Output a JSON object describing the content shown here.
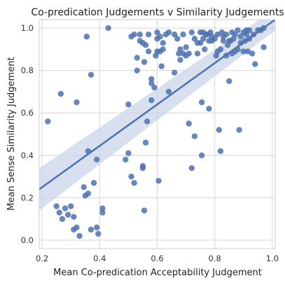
{
  "chart_data": {
    "type": "scatter",
    "title": "Co-predication Judgements v Similarity Judgements",
    "xlabel": "Mean Co-predication Acceptability Judgement",
    "ylabel": "Mean Sense Similarity Judgement",
    "xlim": [
      0.19,
      1.01
    ],
    "ylim": [
      -0.04,
      1.04
    ],
    "xticks": [
      0.2,
      0.4,
      0.6,
      0.8,
      1.0
    ],
    "xtick_labels": [
      "0.2",
      "0.4",
      "0.6",
      "0.8",
      "1.0"
    ],
    "yticks": [
      0.0,
      0.2,
      0.4,
      0.6,
      0.8,
      1.0
    ],
    "ytick_labels": [
      "0.0",
      "0.2",
      "0.4",
      "0.6",
      "0.8",
      "1.0"
    ],
    "grid": true,
    "colors": {
      "points": "#4c72b0",
      "line": "#4c72b0",
      "band": "#c7d3e8"
    },
    "regression": {
      "x": [
        0.19,
        1.01
      ],
      "y": [
        0.24,
        1.04
      ],
      "ci_lower": [
        0.14,
        0.99
      ],
      "ci_upper": [
        0.34,
        1.09
      ]
    },
    "points": [
      [
        0.22,
        0.56
      ],
      [
        0.25,
        0.16
      ],
      [
        0.26,
        0.13
      ],
      [
        0.265,
        0.69
      ],
      [
        0.27,
        0.1
      ],
      [
        0.28,
        0.15
      ],
      [
        0.29,
        0.12
      ],
      [
        0.3,
        0.16
      ],
      [
        0.31,
        0.05
      ],
      [
        0.31,
        0.11
      ],
      [
        0.32,
        0.65
      ],
      [
        0.32,
        0.06
      ],
      [
        0.33,
        0.02
      ],
      [
        0.345,
        0.25
      ],
      [
        0.35,
        0.21
      ],
      [
        0.355,
        0.96
      ],
      [
        0.36,
        0.42
      ],
      [
        0.36,
        0.22
      ],
      [
        0.37,
        0.05
      ],
      [
        0.37,
        0.78
      ],
      [
        0.38,
        0.27
      ],
      [
        0.39,
        0.38
      ],
      [
        0.39,
        0.06
      ],
      [
        0.395,
        0.03
      ],
      [
        0.41,
        0.15
      ],
      [
        0.41,
        0.13
      ],
      [
        0.43,
        1.0
      ],
      [
        0.49,
        0.38
      ],
      [
        0.5,
        0.41
      ],
      [
        0.5,
        0.64
      ],
      [
        0.51,
        0.96
      ],
      [
        0.51,
        0.3
      ],
      [
        0.52,
        0.97
      ],
      [
        0.52,
        0.27
      ],
      [
        0.53,
        0.8
      ],
      [
        0.53,
        0.86
      ],
      [
        0.54,
        0.97
      ],
      [
        0.54,
        0.94
      ],
      [
        0.55,
        0.34
      ],
      [
        0.55,
        0.35
      ],
      [
        0.55,
        0.93
      ],
      [
        0.555,
        0.84
      ],
      [
        0.555,
        0.14
      ],
      [
        0.56,
        0.46
      ],
      [
        0.56,
        0.92
      ],
      [
        0.565,
        0.56
      ],
      [
        0.57,
        0.97
      ],
      [
        0.57,
        0.89
      ],
      [
        0.58,
        0.74
      ],
      [
        0.58,
        0.66
      ],
      [
        0.58,
        0.76
      ],
      [
        0.59,
        0.72
      ],
      [
        0.595,
        0.87
      ],
      [
        0.6,
        0.98
      ],
      [
        0.6,
        0.89
      ],
      [
        0.6,
        0.95
      ],
      [
        0.605,
        0.28
      ],
      [
        0.61,
        0.89
      ],
      [
        0.61,
        0.96
      ],
      [
        0.615,
        0.82
      ],
      [
        0.62,
        0.93
      ],
      [
        0.62,
        0.9
      ],
      [
        0.63,
        0.97
      ],
      [
        0.64,
        0.98
      ],
      [
        0.64,
        0.7
      ],
      [
        0.66,
        0.97
      ],
      [
        0.66,
        0.79
      ],
      [
        0.67,
        0.95
      ],
      [
        0.675,
        0.88
      ],
      [
        0.68,
        0.9
      ],
      [
        0.68,
        0.85
      ],
      [
        0.69,
        0.97
      ],
      [
        0.69,
        0.88
      ],
      [
        0.7,
        0.91
      ],
      [
        0.7,
        0.87
      ],
      [
        0.71,
        0.88
      ],
      [
        0.71,
        0.55
      ],
      [
        0.72,
        0.98
      ],
      [
        0.72,
        0.34
      ],
      [
        0.73,
        0.95
      ],
      [
        0.73,
        0.49
      ],
      [
        0.74,
        0.93
      ],
      [
        0.74,
        0.88
      ],
      [
        0.75,
        0.98
      ],
      [
        0.75,
        0.93
      ],
      [
        0.755,
        0.4
      ],
      [
        0.755,
        0.65
      ],
      [
        0.76,
        0.98
      ],
      [
        0.76,
        0.95
      ],
      [
        0.765,
        0.9
      ],
      [
        0.77,
        0.97
      ],
      [
        0.775,
        0.97
      ],
      [
        0.78,
        0.94
      ],
      [
        0.78,
        0.62
      ],
      [
        0.785,
        0.98
      ],
      [
        0.79,
        0.96
      ],
      [
        0.79,
        0.94
      ],
      [
        0.8,
        0.95
      ],
      [
        0.805,
        0.87
      ],
      [
        0.81,
        0.97
      ],
      [
        0.81,
        0.89
      ],
      [
        0.815,
        0.52
      ],
      [
        0.82,
        0.42
      ],
      [
        0.82,
        0.9
      ],
      [
        0.825,
        0.98
      ],
      [
        0.83,
        0.94
      ],
      [
        0.83,
        0.96
      ],
      [
        0.84,
        0.87
      ],
      [
        0.84,
        0.97
      ],
      [
        0.845,
        0.92
      ],
      [
        0.85,
        0.75
      ],
      [
        0.85,
        0.94
      ],
      [
        0.855,
        0.94
      ],
      [
        0.86,
        0.98
      ],
      [
        0.86,
        0.88
      ],
      [
        0.865,
        0.95
      ],
      [
        0.87,
        0.97
      ],
      [
        0.87,
        0.89
      ],
      [
        0.88,
        0.99
      ],
      [
        0.88,
        0.9
      ],
      [
        0.885,
        0.52
      ],
      [
        0.89,
        0.93
      ],
      [
        0.89,
        0.96
      ],
      [
        0.9,
        0.98
      ],
      [
        0.9,
        0.89
      ],
      [
        0.905,
        0.94
      ],
      [
        0.91,
        0.99
      ],
      [
        0.91,
        0.97
      ],
      [
        0.915,
        0.89
      ],
      [
        0.92,
        0.95
      ],
      [
        0.92,
        0.99
      ],
      [
        0.93,
        0.88
      ],
      [
        0.935,
        0.97
      ],
      [
        0.94,
        0.83
      ],
      [
        0.95,
        0.99
      ],
      [
        0.96,
        0.99
      ],
      [
        0.97,
        0.91
      ],
      [
        0.97,
        1.0
      ]
    ]
  }
}
